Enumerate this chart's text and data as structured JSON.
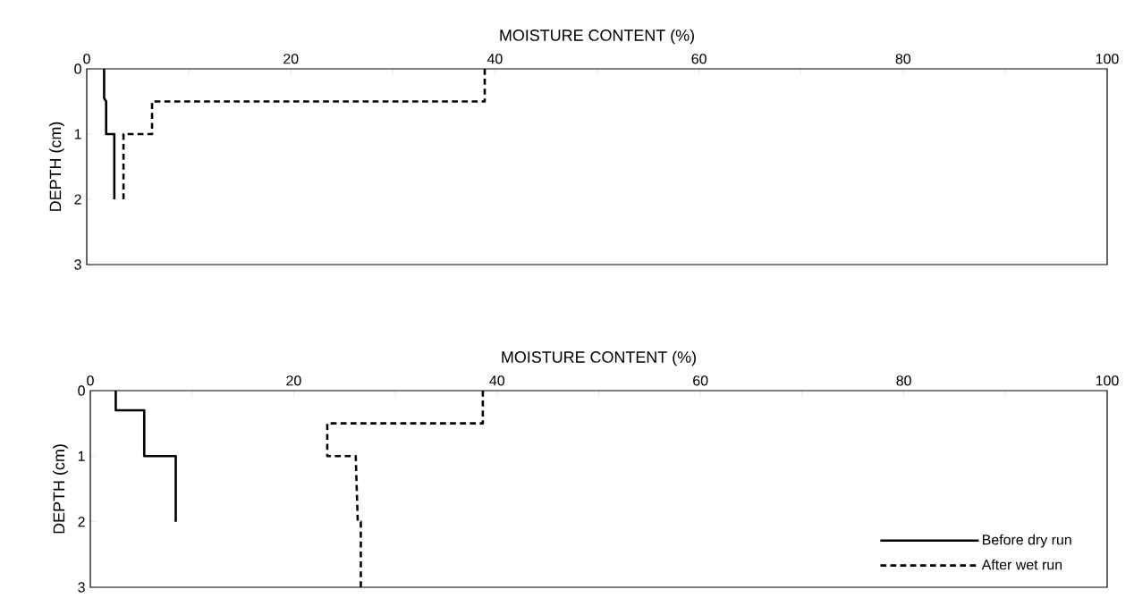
{
  "chart_data": [
    {
      "type": "line",
      "xlabel": "MOISTURE CONTENT (%)",
      "ylabel": "DEPTH (cm)",
      "xlim": [
        0,
        100
      ],
      "ylim": [
        3,
        0
      ],
      "xticks": [
        0,
        {
          "value": 10,
          "label": null
        },
        20,
        {
          "value": 30,
          "label": null
        },
        40,
        {
          "value": 50,
          "label": null
        },
        60,
        {
          "value": 70,
          "label": null
        },
        80,
        {
          "value": 90,
          "label": null
        },
        100
      ],
      "yticks": [
        0,
        1,
        2,
        3
      ],
      "grid": false,
      "legend": false,
      "series": [
        {
          "color": "#000000",
          "line_style": "solid",
          "x": [
            1.7,
            1.7,
            1.9,
            1.9,
            2.7,
            2.7
          ],
          "values": [
            0,
            0.45,
            0.5,
            1,
            1,
            2
          ]
        },
        {
          "color": "#000000",
          "line_style": "dashed",
          "x": [
            39,
            39,
            6.4,
            6.4,
            3.6,
            3.6
          ],
          "values": [
            0,
            0.5,
            0.5,
            1,
            1,
            2
          ]
        }
      ]
    },
    {
      "type": "line",
      "xlabel": "MOISTURE CONTENT (%)",
      "ylabel": "DEPTH (cm)",
      "xlim": [
        0,
        100
      ],
      "ylim": [
        3,
        0
      ],
      "xticks": [
        0,
        {
          "value": 10,
          "label": null
        },
        20,
        {
          "value": 30,
          "label": null
        },
        40,
        {
          "value": 50,
          "label": null
        },
        60,
        {
          "value": 70,
          "label": null
        },
        80,
        {
          "value": 90,
          "label": null
        },
        100
      ],
      "yticks": [
        0,
        1,
        2,
        3
      ],
      "grid": false,
      "legend": "bottom right",
      "series": [
        {
          "name": "Before dry run",
          "color": "#000000",
          "line_style": "solid",
          "x": [
            2.5,
            2.5,
            5.3,
            5.3,
            8.4,
            8.4
          ],
          "values": [
            0,
            0.3,
            0.3,
            1,
            1,
            2
          ]
        },
        {
          "name": "After wet run",
          "color": "#000000",
          "line_style": "dashed",
          "x": [
            38.6,
            38.6,
            23.3,
            23.3,
            26.1,
            26.3,
            26.6,
            26.6
          ],
          "values": [
            0,
            0.5,
            0.5,
            1,
            1,
            2,
            2,
            3
          ]
        }
      ]
    }
  ]
}
